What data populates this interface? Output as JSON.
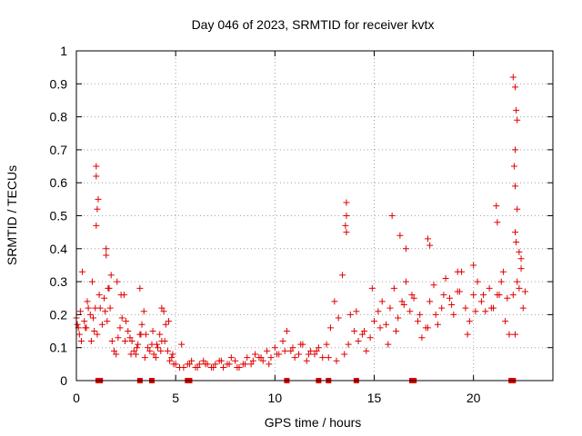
{
  "chart_data": {
    "type": "scatter",
    "title": "Day 046 of 2023, SRMTID for receiver kvtx",
    "xlabel": "GPS time / hours",
    "ylabel": "SRMTID / TECUs",
    "xlim": [
      0,
      24
    ],
    "ylim": [
      0,
      1
    ],
    "x_ticks": [
      0,
      5,
      10,
      15,
      20
    ],
    "x_tick_labels": [
      "0",
      "5",
      "10",
      "15",
      "20"
    ],
    "y_ticks": [
      0,
      0.1,
      0.2,
      0.3,
      0.4,
      0.5,
      0.6,
      0.7,
      0.8,
      0.9,
      1
    ],
    "y_tick_labels": [
      "0",
      "0.1",
      "0.2",
      "0.3",
      "0.4",
      "0.5",
      "0.6",
      "0.7",
      "0.8",
      "0.9",
      "1"
    ],
    "grid": true,
    "marker": "plus",
    "color": "#e00000",
    "series": [
      {
        "name": "SRMTID",
        "x": [
          0.0,
          0.1,
          0.2,
          0.3,
          0.4,
          0.5,
          0.6,
          0.7,
          0.8,
          0.9,
          1.0,
          1.1,
          1.2,
          1.3,
          1.4,
          1.5,
          1.6,
          1.7,
          1.8,
          1.9,
          2.0,
          2.1,
          2.2,
          2.3,
          2.4,
          2.5,
          2.6,
          2.7,
          2.8,
          2.9,
          3.0,
          3.1,
          3.2,
          3.3,
          3.4,
          3.5,
          3.6,
          3.7,
          3.8,
          3.9,
          4.0,
          4.1,
          4.2,
          4.3,
          4.4,
          4.5,
          4.6,
          4.7,
          4.8,
          4.9,
          5.0,
          5.2,
          5.4,
          5.6,
          5.8,
          6.0,
          6.2,
          6.4,
          6.6,
          6.8,
          7.0,
          7.2,
          7.4,
          7.6,
          7.8,
          8.0,
          8.2,
          8.4,
          8.6,
          8.8,
          9.0,
          9.2,
          9.4,
          9.6,
          9.8,
          10.0,
          10.2,
          10.4,
          10.6,
          10.8,
          11.0,
          11.2,
          11.4,
          11.6,
          11.8,
          12.0,
          12.2,
          12.4,
          12.6,
          12.8,
          13.0,
          13.2,
          13.4,
          13.6,
          13.8,
          14.0,
          14.2,
          14.4,
          14.6,
          14.8,
          15.0,
          15.2,
          15.4,
          15.6,
          15.8,
          16.0,
          16.2,
          16.4,
          16.6,
          16.8,
          17.0,
          17.2,
          17.4,
          17.6,
          17.8,
          18.0,
          18.2,
          18.4,
          18.6,
          18.8,
          19.0,
          19.2,
          19.4,
          19.6,
          19.8,
          20.0,
          20.2,
          20.4,
          20.6,
          20.8,
          21.0,
          21.2,
          21.4,
          21.6,
          21.8,
          22.0,
          22.2,
          22.4,
          22.6,
          0.05,
          0.15,
          0.25,
          0.45,
          0.55,
          0.75,
          0.85,
          0.95,
          1.05,
          1.15,
          1.45,
          1.55,
          1.65,
          1.75,
          2.05,
          2.25,
          2.45,
          2.75,
          3.05,
          3.25,
          3.45,
          3.85,
          4.05,
          4.25,
          4.45,
          4.65,
          4.85,
          5.3,
          5.7,
          6.1,
          6.5,
          6.9,
          7.3,
          7.7,
          8.1,
          8.5,
          8.9,
          9.3,
          9.7,
          10.1,
          10.5,
          10.9,
          11.3,
          11.7,
          12.1,
          12.7,
          13.1,
          13.5,
          13.7,
          14.1,
          14.5,
          14.9,
          15.3,
          15.7,
          16.1,
          16.5,
          16.9,
          17.3,
          17.7,
          18.1,
          18.5,
          18.9,
          19.3,
          19.7,
          20.1,
          20.5,
          20.9,
          21.3,
          21.5,
          21.7,
          22.1,
          22.3,
          22.5,
          1.0,
          1.0,
          1.05,
          1.5,
          3.2,
          4.3,
          13.6,
          13.6,
          13.55,
          15.9,
          16.3,
          16.6,
          17.7,
          17.8,
          19.2,
          20.0,
          21.15,
          21.2,
          22.0,
          22.1,
          22.15,
          22.2,
          22.1,
          22.05,
          22.1,
          22.2,
          22.1,
          22.15,
          22.3,
          22.4
        ],
        "y": [
          0.19,
          0.16,
          0.21,
          0.33,
          0.18,
          0.16,
          0.22,
          0.2,
          0.3,
          0.15,
          0.47,
          0.55,
          0.22,
          0.17,
          0.25,
          0.38,
          0.28,
          0.22,
          0.12,
          0.09,
          0.08,
          0.13,
          0.16,
          0.19,
          0.26,
          0.18,
          0.15,
          0.13,
          0.12,
          0.09,
          0.08,
          0.11,
          0.14,
          0.17,
          0.21,
          0.14,
          0.1,
          0.09,
          0.11,
          0.08,
          0.07,
          0.1,
          0.14,
          0.12,
          0.21,
          0.17,
          0.09,
          0.06,
          0.07,
          0.05,
          0.05,
          0.04,
          0.04,
          0.05,
          0.06,
          0.04,
          0.05,
          0.06,
          0.05,
          0.04,
          0.05,
          0.06,
          0.04,
          0.05,
          0.07,
          0.06,
          0.04,
          0.05,
          0.07,
          0.05,
          0.08,
          0.07,
          0.06,
          0.09,
          0.07,
          0.1,
          0.08,
          0.12,
          0.15,
          0.09,
          0.07,
          0.08,
          0.11,
          0.06,
          0.09,
          0.08,
          0.1,
          0.07,
          0.11,
          0.16,
          0.24,
          0.19,
          0.32,
          0.45,
          0.2,
          0.15,
          0.12,
          0.14,
          0.09,
          0.13,
          0.18,
          0.21,
          0.24,
          0.17,
          0.22,
          0.28,
          0.19,
          0.24,
          0.3,
          0.21,
          0.25,
          0.18,
          0.13,
          0.16,
          0.24,
          0.29,
          0.17,
          0.22,
          0.31,
          0.25,
          0.2,
          0.27,
          0.33,
          0.22,
          0.18,
          0.26,
          0.3,
          0.24,
          0.21,
          0.28,
          0.22,
          0.26,
          0.3,
          0.18,
          0.14,
          0.26,
          0.3,
          0.34,
          0.27,
          0.17,
          0.14,
          0.12,
          0.16,
          0.24,
          0.12,
          0.19,
          0.22,
          0.14,
          0.26,
          0.21,
          0.18,
          0.28,
          0.32,
          0.3,
          0.26,
          0.12,
          0.08,
          0.1,
          0.14,
          0.07,
          0.15,
          0.11,
          0.09,
          0.12,
          0.18,
          0.08,
          0.11,
          0.05,
          0.04,
          0.05,
          0.04,
          0.06,
          0.05,
          0.04,
          0.05,
          0.06,
          0.07,
          0.05,
          0.08,
          0.09,
          0.1,
          0.11,
          0.08,
          0.09,
          0.07,
          0.06,
          0.08,
          0.11,
          0.21,
          0.15,
          0.28,
          0.16,
          0.11,
          0.15,
          0.23,
          0.26,
          0.2,
          0.16,
          0.2,
          0.26,
          0.23,
          0.27,
          0.14,
          0.21,
          0.26,
          0.22,
          0.26,
          0.33,
          0.25,
          0.14,
          0.28,
          0.22,
          0.65,
          0.62,
          0.52,
          0.4,
          0.28,
          0.22,
          0.54,
          0.5,
          0.47,
          0.5,
          0.44,
          0.4,
          0.43,
          0.41,
          0.33,
          0.35,
          0.53,
          0.48,
          0.92,
          0.89,
          0.82,
          0.79,
          0.7,
          0.65,
          0.59,
          0.52,
          0.45,
          0.42,
          0.39,
          0.37
        ],
        "markers_at_zero_x": [
          1.1,
          1.2,
          3.2,
          3.8,
          5.6,
          5.7,
          10.6,
          12.2,
          12.7,
          14.1,
          16.9,
          17.0,
          21.9,
          22.0
        ]
      }
    ]
  }
}
